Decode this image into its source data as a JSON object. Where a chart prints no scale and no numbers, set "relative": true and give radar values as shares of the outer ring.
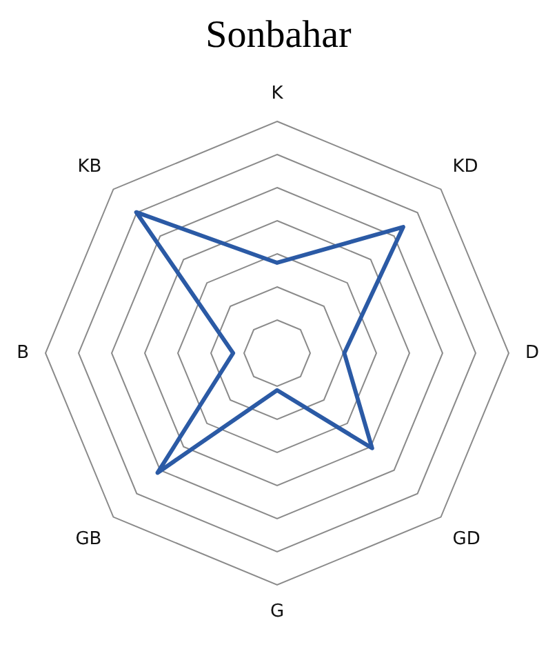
{
  "chart_data": {
    "type": "radar",
    "title": "Sonbahar",
    "relative": true,
    "grid": true,
    "legend": false,
    "marker": "none",
    "categories": [
      "K",
      "KD",
      "D",
      "GD",
      "G",
      "GB",
      "B",
      "KB"
    ],
    "series": [
      {
        "color": "#2b5aa5",
        "values": [
          0.39,
          0.77,
          0.29,
          0.58,
          0.16,
          0.73,
          0.19,
          0.86
        ]
      }
    ]
  }
}
